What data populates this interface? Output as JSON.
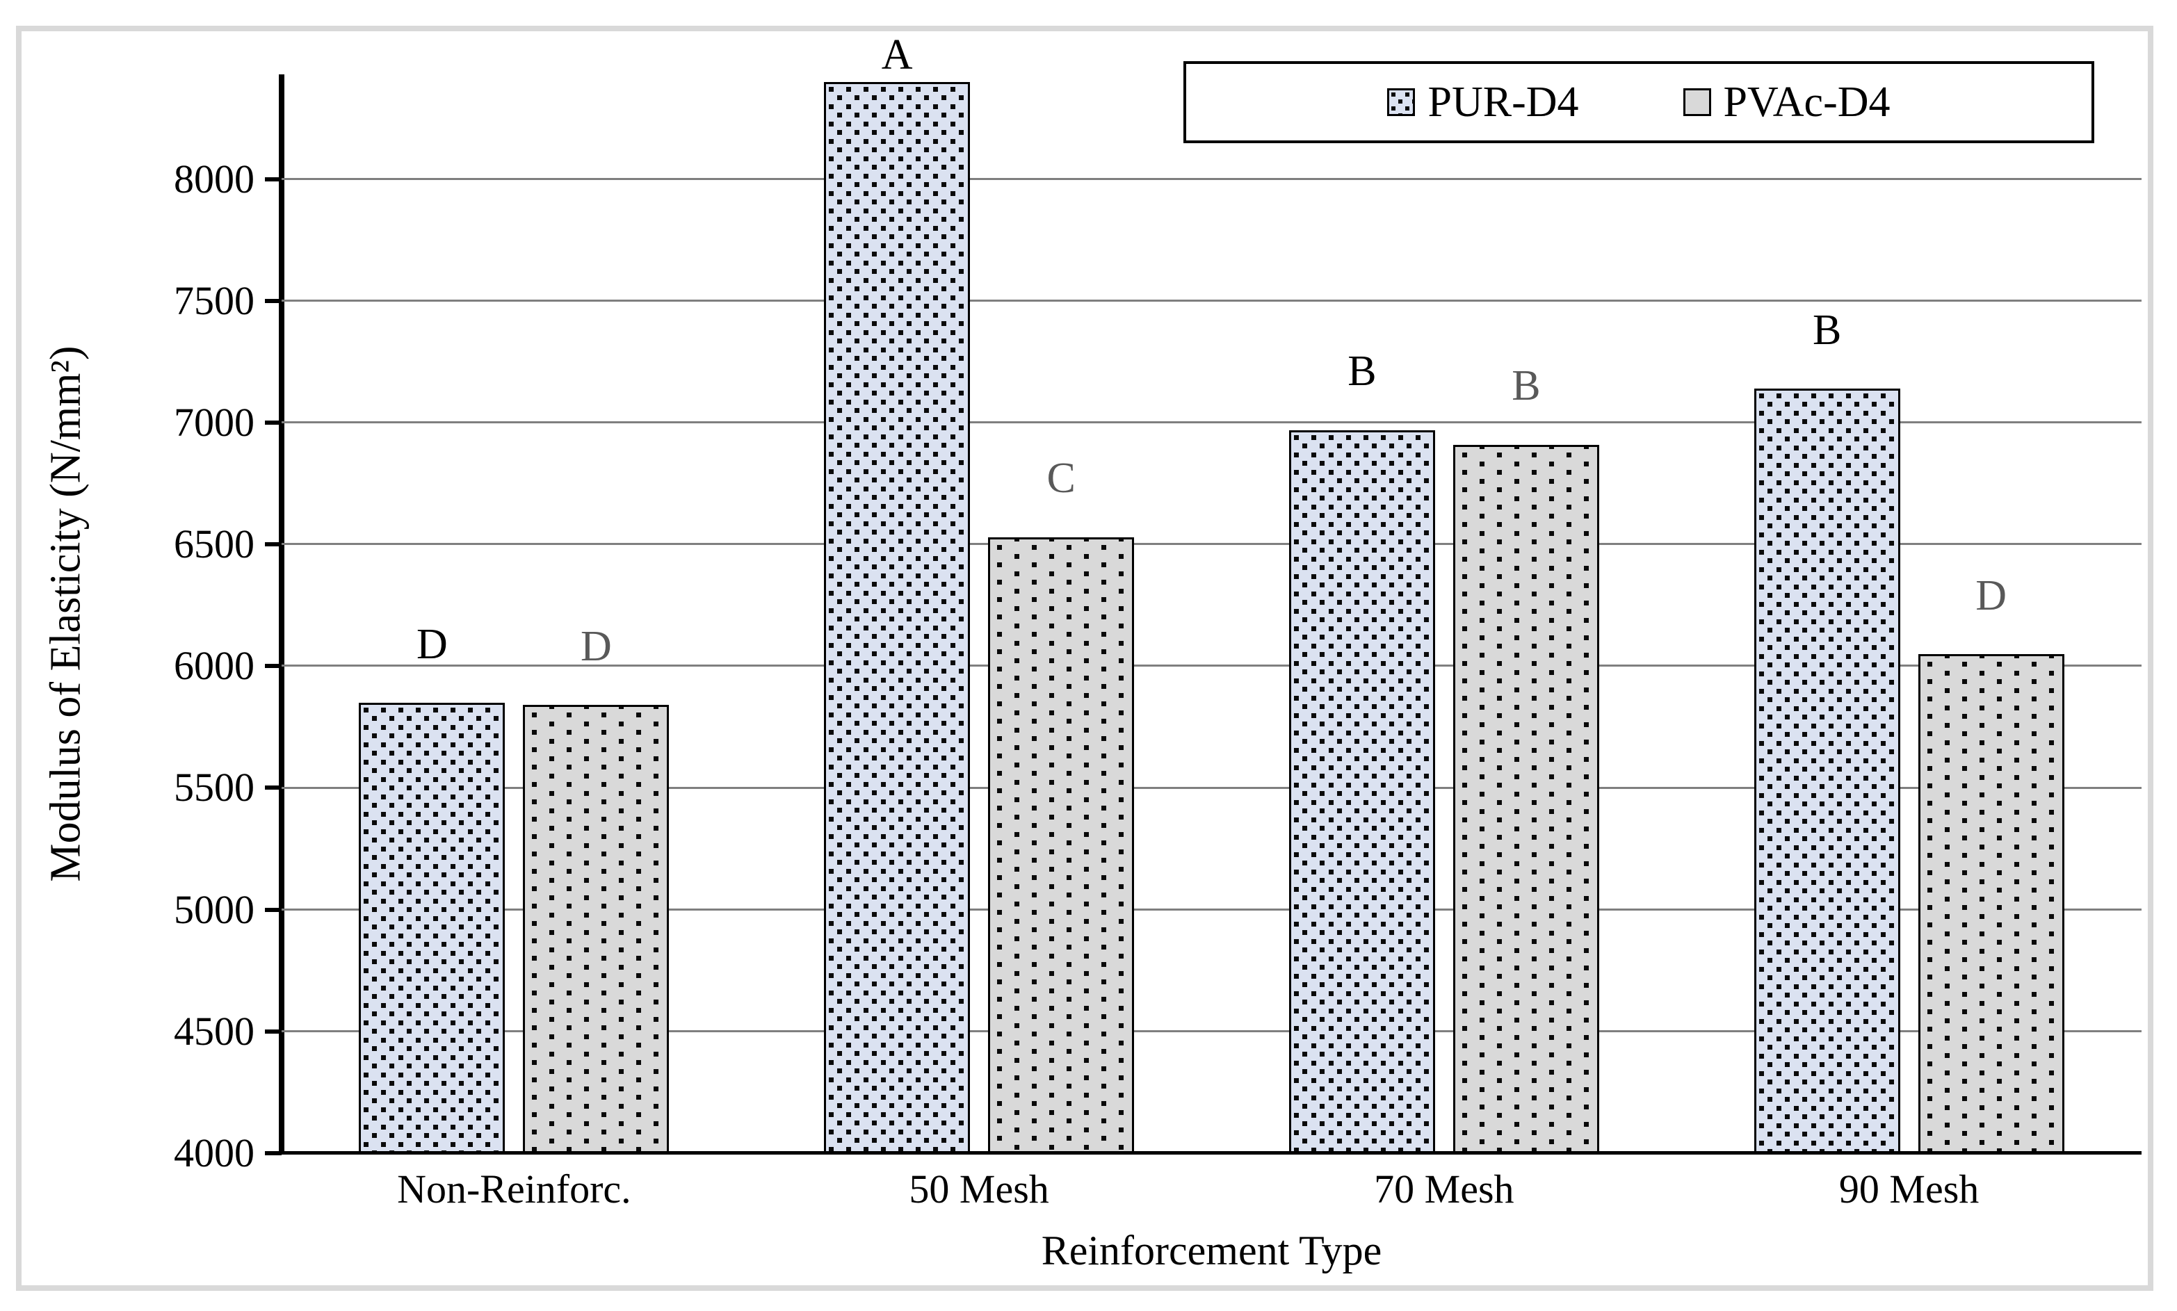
{
  "chart_data": {
    "type": "bar",
    "title": "",
    "xlabel": "Reinforcement Type",
    "ylabel": "Modulus of Elasticity (N/mm²)",
    "categories": [
      "Non-Reinforc.",
      "50 Mesh",
      "70 Mesh",
      "90 Mesh"
    ],
    "series": [
      {
        "name": "PUR-D4",
        "values": [
          5850,
          8400,
          6970,
          7140
        ],
        "sig_labels": [
          "D",
          "A",
          "B",
          "B"
        ],
        "fill": "#dbe2f1",
        "pattern": "dense-square-dots",
        "label_color": "#000000"
      },
      {
        "name": "PVAc-D4",
        "values": [
          5840,
          6530,
          6910,
          6050
        ],
        "sig_labels": [
          "D",
          "C",
          "B",
          "D"
        ],
        "fill": "#d9d9d9",
        "pattern": "sparse-square-dots",
        "label_color": "#595959"
      }
    ],
    "ylim": [
      4000,
      8430
    ],
    "yticks": [
      4000,
      4500,
      5000,
      5500,
      6000,
      6500,
      7000,
      7500,
      8000
    ],
    "grid": true,
    "gridline_color": "#7f7f7f",
    "axis_color": "#000000",
    "frame_color": "#d9d9d9",
    "legend_position": "top-right",
    "legend_labels": [
      "PUR-D4",
      "PVAc-D4"
    ]
  }
}
